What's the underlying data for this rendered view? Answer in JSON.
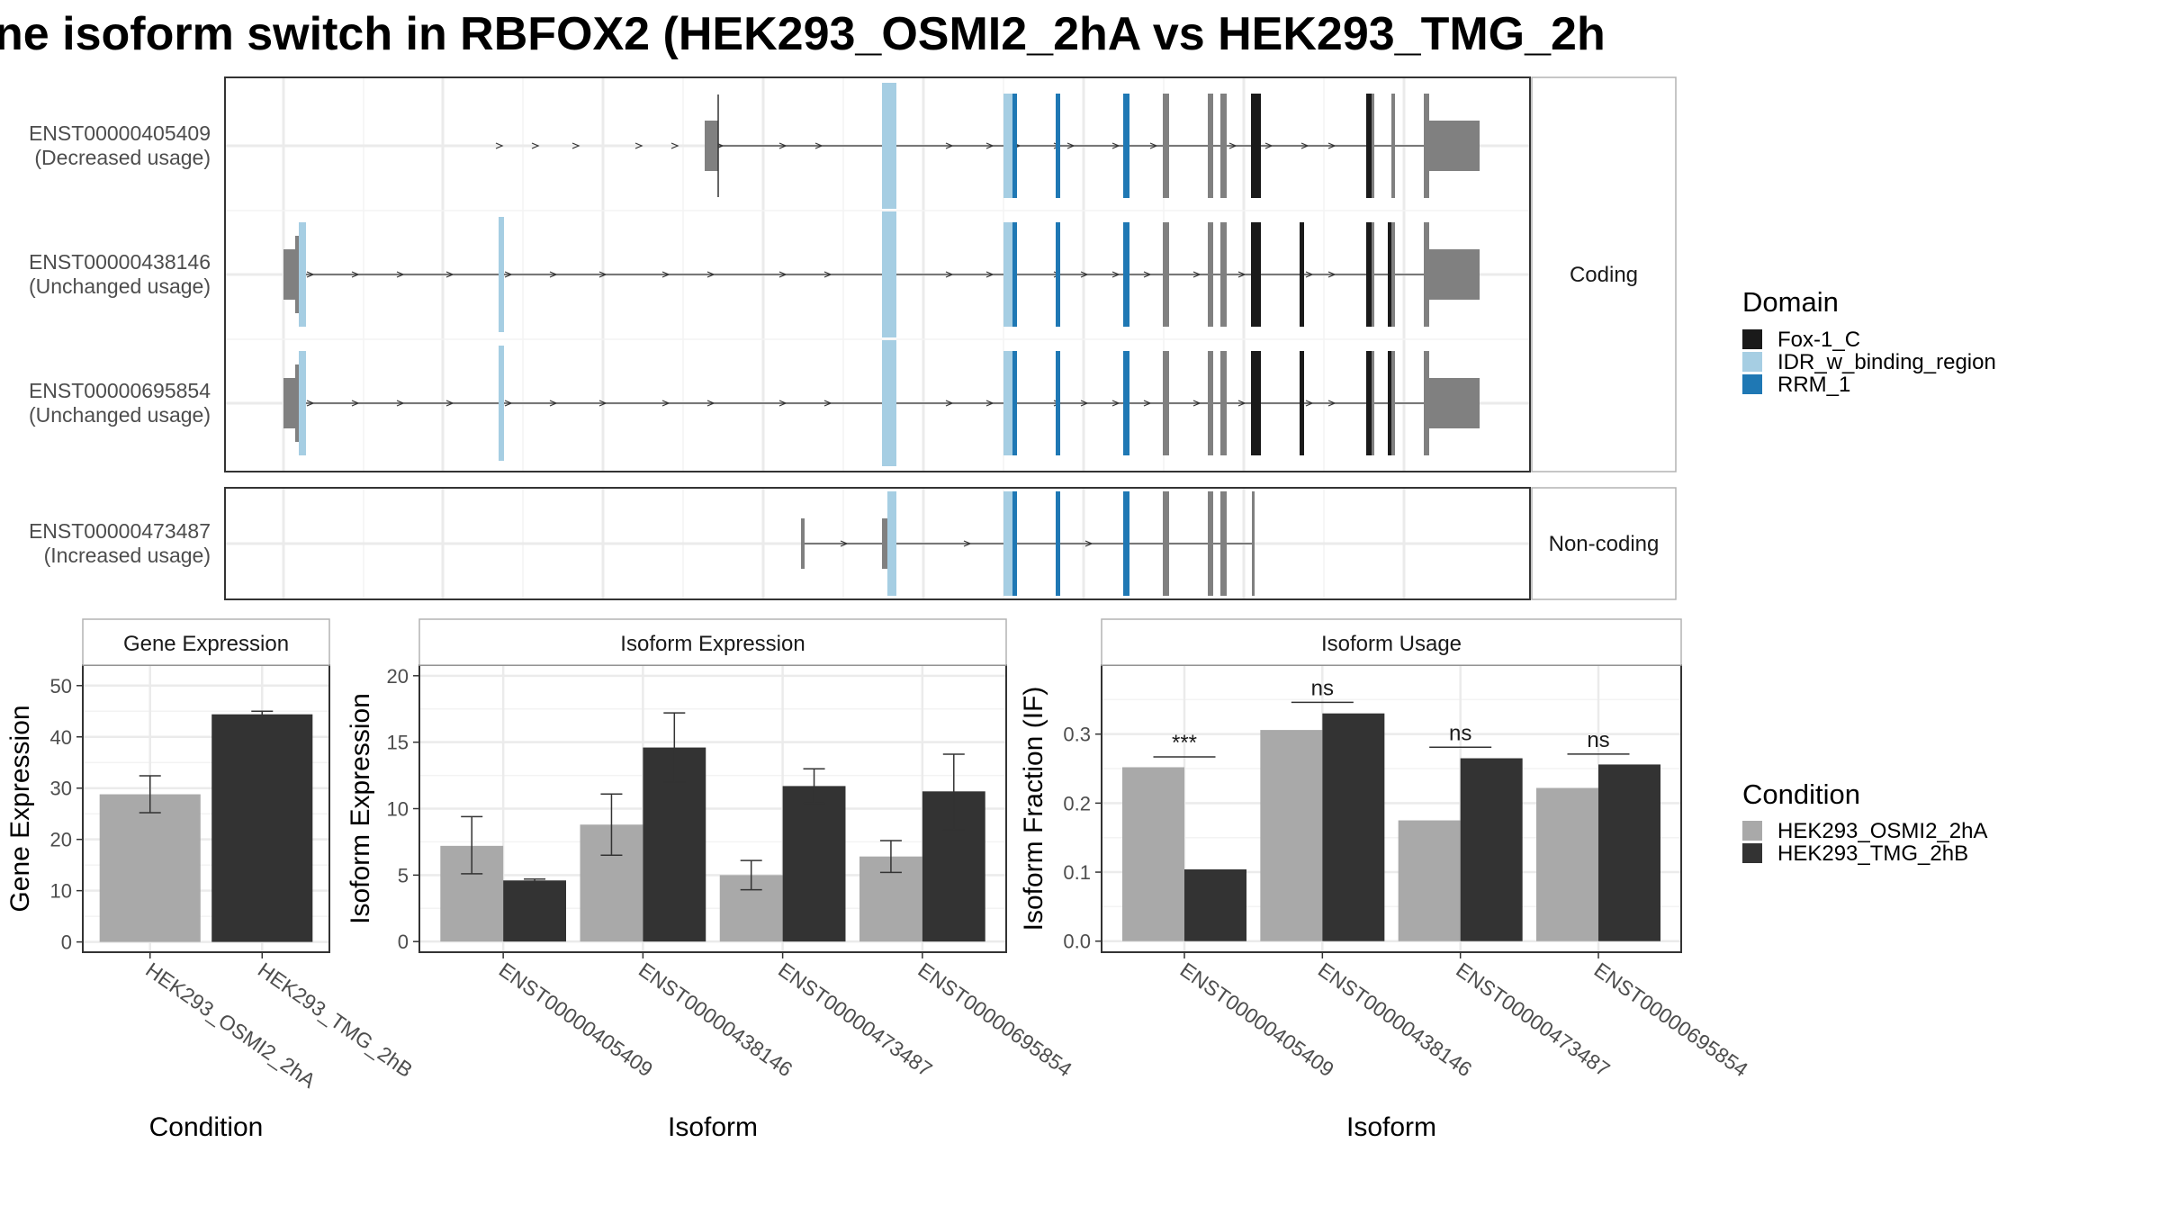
{
  "title": "ne isoform switch in RBFOX2 (HEK293_OSMI2_2hA vs HEK293_TMG_2h",
  "colors": {
    "utr": "#808080",
    "noncoding_exon": "#808080",
    "domain_colors": {
      "Fox-1_C": "#1a1a1a",
      "IDR_w_binding_region": "#a6cee3",
      "RRM_1": "#1f78b4"
    },
    "cond_colors": [
      "#a9a9a9",
      "#333333"
    ],
    "panel_border": "#333333",
    "strip_border": "#b3b3b3",
    "grid": "#ebebeb"
  },
  "transcripts": {
    "panels": [
      {
        "label": "Coding",
        "rows": [
          {
            "id": "ENST00000405409",
            "usage": "(Decreased usage)"
          },
          {
            "id": "ENST00000438146",
            "usage": "(Unchanged usage)"
          },
          {
            "id": "ENST00000695854",
            "usage": "(Unchanged usage)"
          }
        ]
      },
      {
        "label": "Non-coding",
        "rows": [
          {
            "id": "ENST00000473487",
            "usage": "(Increased usage)"
          }
        ]
      }
    ]
  },
  "legend_domain": {
    "title": "Domain",
    "items": [
      {
        "name": "Fox-1_C",
        "color": "#1a1a1a"
      },
      {
        "name": "IDR_w_binding_region",
        "color": "#a6cee3"
      },
      {
        "name": "RRM_1",
        "color": "#1f78b4"
      }
    ]
  },
  "legend_condition": {
    "title": "Condition",
    "items": [
      {
        "name": "HEK293_OSMI2_2hA",
        "color": "#a9a9a9"
      },
      {
        "name": "HEK293_TMG_2hB",
        "color": "#333333"
      }
    ]
  },
  "chart_data": [
    {
      "type": "bar",
      "title": "Gene Expression",
      "xlabel": "Condition",
      "ylabel": "Gene Expression",
      "ylim": [
        -2,
        54
      ],
      "yticks": [
        0,
        10,
        20,
        30,
        40,
        50
      ],
      "categories": [
        "HEK293_OSMI2_2hA",
        "HEK293_TMG_2hB"
      ],
      "values": [
        28.8,
        44.4
      ],
      "errors": [
        [
          25.2,
          32.4
        ],
        [
          43.6,
          45.0
        ]
      ]
    },
    {
      "type": "bar",
      "title": "Isoform Expression",
      "xlabel": "Isoform",
      "ylabel": "Isoform Expression",
      "ylim": [
        -0.8,
        20.8
      ],
      "yticks": [
        0,
        5,
        10,
        15,
        20
      ],
      "categories": [
        "ENST00000405409",
        "ENST00000438146",
        "ENST00000473487",
        "ENST00000695854"
      ],
      "series": [
        {
          "name": "HEK293_OSMI2_2hA",
          "values": [
            7.2,
            8.8,
            5.0,
            6.4
          ],
          "errors": [
            [
              5.1,
              9.4
            ],
            [
              6.5,
              11.1
            ],
            [
              3.9,
              6.1
            ],
            [
              5.2,
              7.6
            ]
          ]
        },
        {
          "name": "HEK293_TMG_2hB",
          "values": [
            4.6,
            14.6,
            11.7,
            11.3
          ],
          "errors": [
            [
              4.5,
              4.7
            ],
            [
              12.0,
              17.2
            ],
            [
              10.4,
              13.0
            ],
            [
              8.4,
              14.1
            ]
          ]
        }
      ]
    },
    {
      "type": "bar",
      "title": "Isoform Usage",
      "xlabel": "Isoform",
      "ylabel": "Isoform Fraction (IF)",
      "ylim": [
        -0.016,
        0.4
      ],
      "yticks": [
        "0.0",
        "0.1",
        "0.2",
        "0.3"
      ],
      "categories": [
        "ENST00000405409",
        "ENST00000438146",
        "ENST00000473487",
        "ENST00000695854"
      ],
      "series": [
        {
          "name": "HEK293_OSMI2_2hA",
          "values": [
            0.252,
            0.306,
            0.175,
            0.222
          ]
        },
        {
          "name": "HEK293_TMG_2hB",
          "values": [
            0.104,
            0.33,
            0.265,
            0.256
          ]
        }
      ],
      "significance": [
        {
          "label": "***",
          "y": 0.267
        },
        {
          "label": "ns",
          "y": 0.346
        },
        {
          "label": "ns",
          "y": 0.281
        },
        {
          "label": "ns",
          "y": 0.271
        }
      ]
    }
  ]
}
